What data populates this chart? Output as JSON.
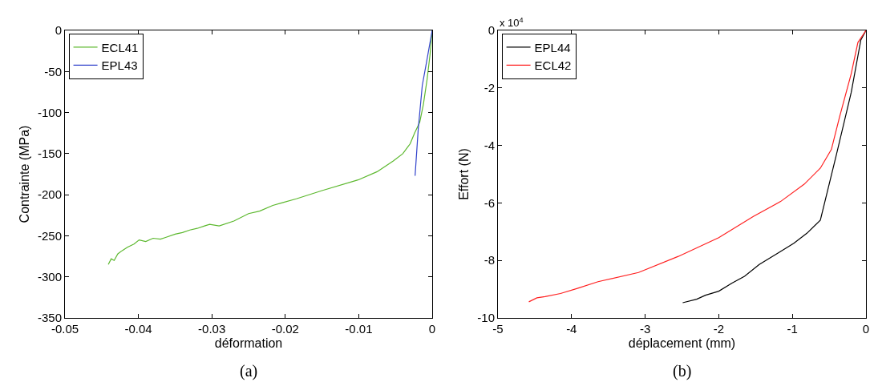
{
  "chart_data": [
    {
      "type": "line",
      "title": "(a)",
      "xlabel": "déformation",
      "ylabel": "Contrainte (MPa)",
      "xlim": [
        -0.05,
        0
      ],
      "ylim": [
        -350,
        0
      ],
      "xticks": [
        -0.05,
        -0.04,
        -0.03,
        -0.02,
        -0.01,
        0
      ],
      "yticks": [
        -350,
        -300,
        -250,
        -200,
        -150,
        -100,
        -50,
        0
      ],
      "legend": "top left",
      "series": [
        {
          "name": "ECL41",
          "color": "#5cb82e",
          "x": [
            -0.0441,
            -0.0437,
            -0.0433,
            -0.0428,
            -0.0422,
            -0.0415,
            -0.0406,
            -0.0399,
            -0.039,
            -0.038,
            -0.037,
            -0.0363,
            -0.035,
            -0.034,
            -0.033,
            -0.032,
            -0.031,
            -0.0303,
            -0.029,
            -0.027,
            -0.025,
            -0.0235,
            -0.0217,
            -0.0205,
            -0.0185,
            -0.015,
            -0.0101,
            -0.0075,
            -0.0053,
            -0.004,
            -0.003,
            -0.0024,
            -0.0017,
            -0.0012,
            -0.0007,
            -0.0003,
            0
          ],
          "values": [
            -285,
            -278,
            -280,
            -272,
            -268,
            -264,
            -260,
            -255,
            -257,
            -253,
            -254,
            -252,
            -248,
            -246,
            -243,
            -241,
            -238,
            -236,
            -238,
            -232,
            -223,
            -220,
            -213,
            -210,
            -205,
            -195,
            -182,
            -172,
            -159,
            -150,
            -138,
            -125,
            -112,
            -90,
            -60,
            -30,
            0
          ]
        },
        {
          "name": "EPL43",
          "color": "#3344cc",
          "x": [
            -0.00233,
            -0.0019,
            -0.00135,
            -0.0008,
            -0.0003,
            0
          ],
          "values": [
            -177,
            -120,
            -67,
            -40,
            -15,
            0
          ]
        }
      ]
    },
    {
      "type": "line",
      "title": "(b)",
      "xlabel": "déplacement (mm)",
      "ylabel": "Effort (N)",
      "annotations": [
        "x 10$^{4}$"
      ],
      "xlim": [
        -5,
        0
      ],
      "ylim": [
        -10,
        0
      ],
      "xticks": [
        -5,
        -4,
        -3,
        -2,
        -1,
        0
      ],
      "yticks": [
        -10,
        -8,
        -6,
        -4,
        -2,
        0
      ],
      "legend": "top left",
      "series": [
        {
          "name": "EPL44",
          "color": "#000000",
          "x": [
            -2.49,
            -2.3,
            -2.18,
            -2.0,
            -1.82,
            -1.65,
            -1.45,
            -1.2,
            -0.98,
            -0.8,
            -0.62,
            -0.4,
            -0.2,
            -0.07,
            0
          ],
          "values": [
            -9.47,
            -9.35,
            -9.21,
            -9.07,
            -8.79,
            -8.55,
            -8.14,
            -7.75,
            -7.4,
            -7.05,
            -6.6,
            -4.3,
            -2.15,
            -0.33,
            0
          ]
        },
        {
          "name": "ECL42",
          "color": "#ff2020",
          "x": [
            -4.58,
            -4.47,
            -4.36,
            -4.15,
            -3.93,
            -3.64,
            -3.09,
            -2.55,
            -2.0,
            -1.53,
            -1.16,
            -0.84,
            -0.62,
            -0.47,
            -0.36,
            -0.2,
            -0.11,
            0
          ],
          "values": [
            -9.44,
            -9.3,
            -9.26,
            -9.15,
            -8.98,
            -8.74,
            -8.42,
            -7.86,
            -7.21,
            -6.47,
            -5.95,
            -5.35,
            -4.79,
            -4.14,
            -3.02,
            -1.5,
            -0.42,
            0
          ]
        }
      ]
    }
  ]
}
